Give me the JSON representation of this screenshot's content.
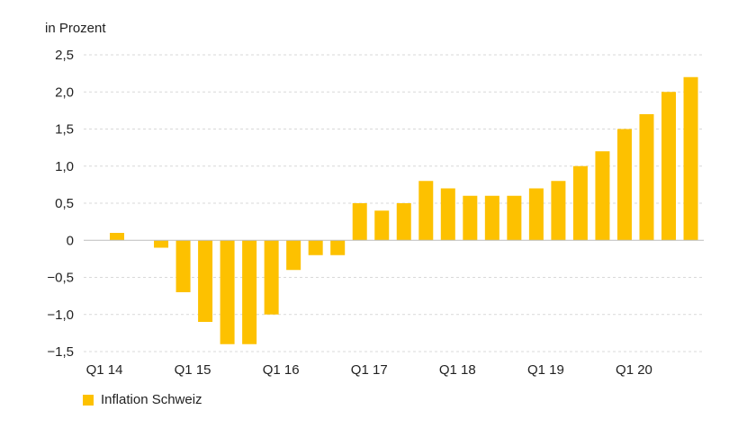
{
  "chart_data": {
    "type": "bar",
    "unit_label": "in Prozent",
    "ylim": [
      -1.5,
      2.5
    ],
    "y_ticks": [
      2.5,
      2.0,
      1.5,
      1.0,
      0.5,
      0,
      -0.5,
      -1.0,
      -1.5
    ],
    "y_tick_labels": [
      "2,5",
      "2,0",
      "1,5",
      "1,0",
      "0,5",
      "0",
      "−0,5",
      "−1,0",
      "−1,5"
    ],
    "x_tick_labels": [
      "Q1 14",
      "Q1 15",
      "Q1 16",
      "Q1 17",
      "Q1 18",
      "Q1 19",
      "Q1 20"
    ],
    "grid": true,
    "legend_position": "bottom-left",
    "series": [
      {
        "name": "Inflation Schweiz",
        "color": "#fdc100",
        "values": [
          0.1,
          0,
          -0.1,
          -0.7,
          -1.1,
          -1.4,
          -1.4,
          -1.0,
          -0.4,
          -0.2,
          -0.2,
          0.5,
          0.4,
          0.5,
          0.8,
          0.7,
          0.6,
          0.6,
          0.6,
          0.7,
          0.8,
          1.0,
          1.2,
          1.5,
          1.7,
          2.0,
          2.2
        ]
      }
    ]
  }
}
